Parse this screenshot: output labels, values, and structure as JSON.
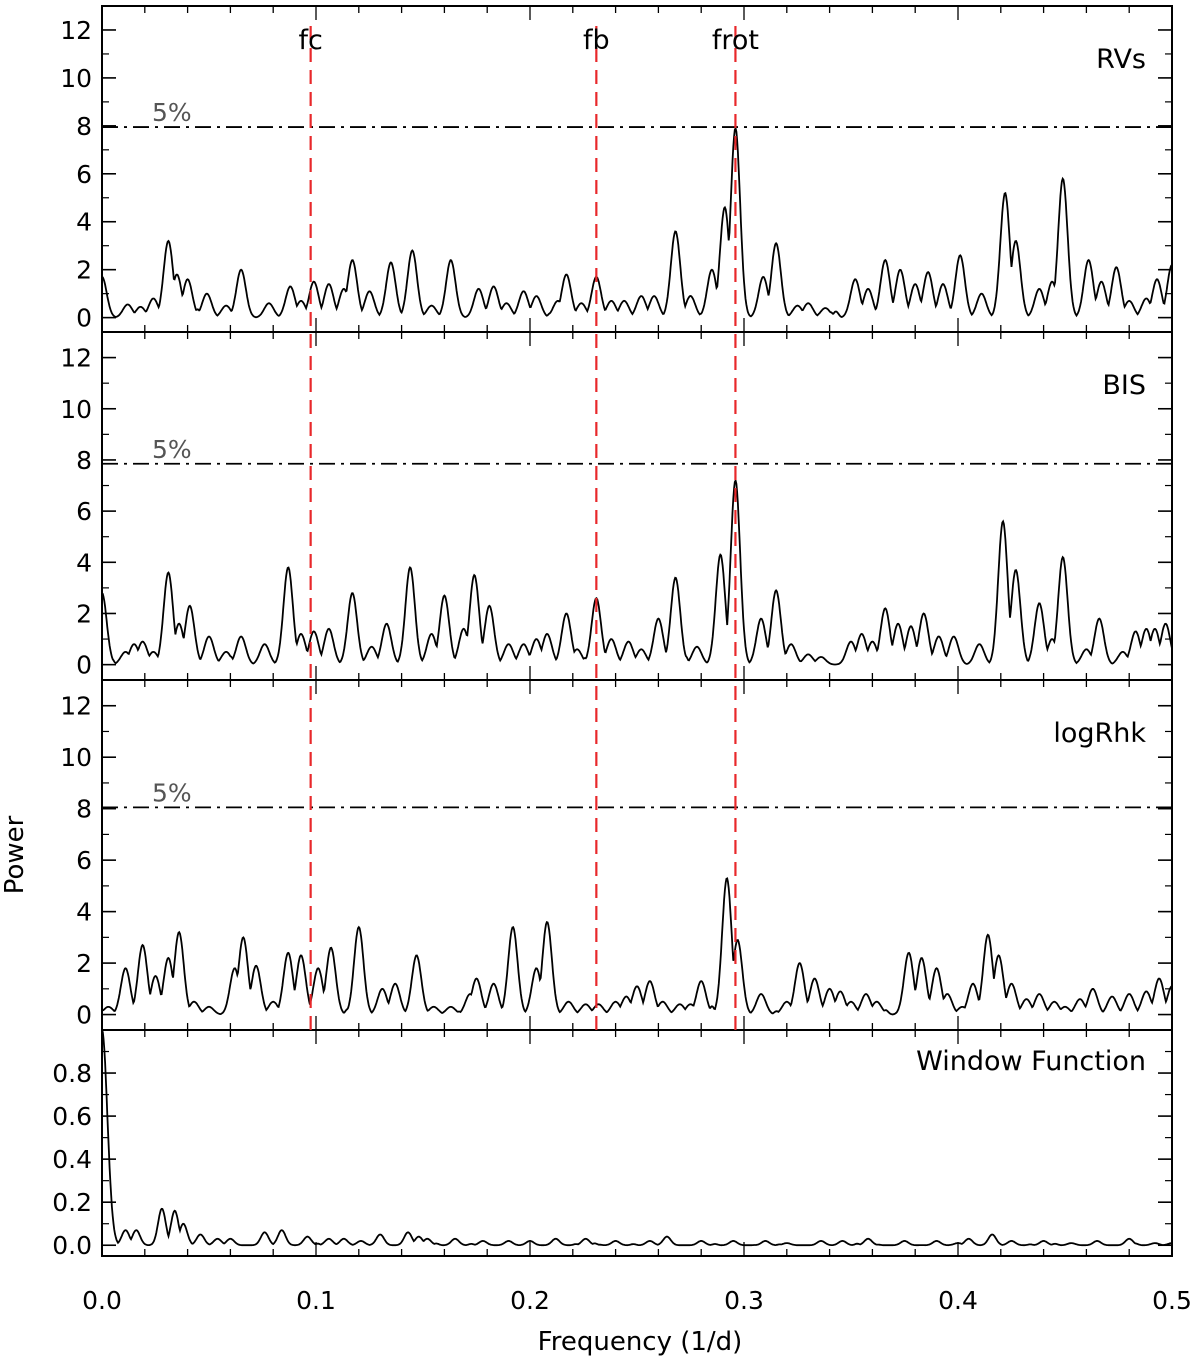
{
  "chart_data": {
    "type": "line",
    "xlabel": "Frequency (1/d)",
    "ylabel": "Power",
    "xlim": [
      0.0,
      0.5
    ],
    "x_ticks": [
      "0.0",
      "0.1",
      "0.2",
      "0.3",
      "0.4",
      "0.5"
    ],
    "vertical_markers": [
      {
        "label": "fc",
        "x": 0.0975,
        "color": "#e8282b"
      },
      {
        "label": "fb",
        "x": 0.231,
        "color": "#e8282b"
      },
      {
        "label": "frot",
        "x": 0.296,
        "color": "#e8282b"
      }
    ],
    "panels": [
      {
        "label": "RVs",
        "ylim": [
          -0.6,
          13
        ],
        "yticks": [
          "0",
          "2",
          "4",
          "6",
          "8",
          "10",
          "12"
        ],
        "significance": {
          "label": "5%",
          "value": 7.95
        },
        "peaks": [
          [
            0.0,
            1.7
          ],
          [
            0.012,
            0.55
          ],
          [
            0.018,
            0.45
          ],
          [
            0.024,
            0.8
          ],
          [
            0.031,
            3.2
          ],
          [
            0.035,
            1.8
          ],
          [
            0.04,
            1.6
          ],
          [
            0.049,
            1.0
          ],
          [
            0.058,
            0.5
          ],
          [
            0.065,
            2.0
          ],
          [
            0.078,
            0.6
          ],
          [
            0.088,
            1.3
          ],
          [
            0.093,
            0.7
          ],
          [
            0.099,
            1.5
          ],
          [
            0.106,
            1.4
          ],
          [
            0.113,
            1.2
          ],
          [
            0.117,
            2.4
          ],
          [
            0.125,
            1.1
          ],
          [
            0.135,
            2.3
          ],
          [
            0.145,
            2.8
          ],
          [
            0.154,
            0.5
          ],
          [
            0.163,
            2.4
          ],
          [
            0.176,
            1.2
          ],
          [
            0.183,
            1.3
          ],
          [
            0.189,
            0.6
          ],
          [
            0.197,
            1.1
          ],
          [
            0.203,
            0.9
          ],
          [
            0.213,
            0.7
          ],
          [
            0.217,
            1.8
          ],
          [
            0.224,
            0.6
          ],
          [
            0.231,
            1.7
          ],
          [
            0.238,
            0.7
          ],
          [
            0.244,
            0.7
          ],
          [
            0.252,
            0.9
          ],
          [
            0.258,
            0.9
          ],
          [
            0.268,
            3.6
          ],
          [
            0.275,
            0.9
          ],
          [
            0.285,
            2.0
          ],
          [
            0.291,
            4.6
          ],
          [
            0.296,
            7.9
          ],
          [
            0.309,
            1.7
          ],
          [
            0.315,
            3.1
          ],
          [
            0.325,
            0.5
          ],
          [
            0.33,
            0.6
          ],
          [
            0.338,
            0.4
          ],
          [
            0.352,
            1.6
          ],
          [
            0.358,
            1.2
          ],
          [
            0.366,
            2.4
          ],
          [
            0.373,
            2.0
          ],
          [
            0.38,
            1.4
          ],
          [
            0.386,
            1.9
          ],
          [
            0.393,
            1.4
          ],
          [
            0.401,
            2.6
          ],
          [
            0.411,
            1.0
          ],
          [
            0.422,
            5.2
          ],
          [
            0.427,
            3.2
          ],
          [
            0.438,
            1.2
          ],
          [
            0.444,
            1.5
          ],
          [
            0.449,
            5.8
          ],
          [
            0.461,
            2.4
          ],
          [
            0.467,
            1.5
          ],
          [
            0.474,
            2.1
          ],
          [
            0.48,
            0.7
          ],
          [
            0.488,
            0.8
          ],
          [
            0.493,
            1.6
          ],
          [
            0.5,
            2.2
          ]
        ]
      },
      {
        "label": "BIS",
        "ylim": [
          -0.6,
          13
        ],
        "yticks": [
          "0",
          "2",
          "4",
          "6",
          "8",
          "10",
          "12"
        ],
        "significance": {
          "label": "5%",
          "value": 7.85
        },
        "peaks": [
          [
            0.0,
            2.8
          ],
          [
            0.011,
            0.5
          ],
          [
            0.015,
            0.8
          ],
          [
            0.019,
            0.9
          ],
          [
            0.024,
            0.5
          ],
          [
            0.031,
            3.6
          ],
          [
            0.036,
            1.6
          ],
          [
            0.041,
            2.3
          ],
          [
            0.05,
            1.1
          ],
          [
            0.058,
            0.5
          ],
          [
            0.065,
            1.1
          ],
          [
            0.076,
            0.8
          ],
          [
            0.087,
            3.8
          ],
          [
            0.093,
            1.2
          ],
          [
            0.099,
            1.3
          ],
          [
            0.106,
            1.4
          ],
          [
            0.117,
            2.8
          ],
          [
            0.126,
            0.7
          ],
          [
            0.133,
            1.6
          ],
          [
            0.144,
            3.8
          ],
          [
            0.154,
            1.2
          ],
          [
            0.16,
            2.7
          ],
          [
            0.169,
            1.4
          ],
          [
            0.174,
            3.5
          ],
          [
            0.181,
            2.3
          ],
          [
            0.19,
            0.8
          ],
          [
            0.197,
            0.8
          ],
          [
            0.203,
            1.0
          ],
          [
            0.208,
            1.2
          ],
          [
            0.217,
            2.0
          ],
          [
            0.222,
            0.6
          ],
          [
            0.231,
            2.6
          ],
          [
            0.238,
            1.0
          ],
          [
            0.246,
            0.9
          ],
          [
            0.252,
            0.6
          ],
          [
            0.26,
            1.8
          ],
          [
            0.268,
            3.4
          ],
          [
            0.278,
            0.7
          ],
          [
            0.289,
            4.3
          ],
          [
            0.296,
            7.2
          ],
          [
            0.308,
            1.8
          ],
          [
            0.315,
            2.9
          ],
          [
            0.322,
            0.8
          ],
          [
            0.33,
            0.4
          ],
          [
            0.336,
            0.3
          ],
          [
            0.35,
            0.9
          ],
          [
            0.355,
            1.2
          ],
          [
            0.36,
            0.9
          ],
          [
            0.366,
            2.2
          ],
          [
            0.372,
            1.6
          ],
          [
            0.378,
            1.5
          ],
          [
            0.384,
            2.0
          ],
          [
            0.391,
            1.1
          ],
          [
            0.398,
            1.1
          ],
          [
            0.41,
            0.8
          ],
          [
            0.421,
            5.6
          ],
          [
            0.427,
            3.7
          ],
          [
            0.438,
            2.4
          ],
          [
            0.444,
            1.0
          ],
          [
            0.449,
            4.2
          ],
          [
            0.46,
            0.6
          ],
          [
            0.466,
            1.8
          ],
          [
            0.477,
            0.5
          ],
          [
            0.483,
            1.3
          ],
          [
            0.488,
            1.4
          ],
          [
            0.492,
            1.4
          ],
          [
            0.497,
            1.6
          ]
        ]
      },
      {
        "label": "logRhk",
        "ylim": [
          -0.6,
          13
        ],
        "yticks": [
          "0",
          "2",
          "4",
          "6",
          "8",
          "10",
          "12"
        ],
        "significance": {
          "label": "5%",
          "value": 8.05
        },
        "peaks": [
          [
            0.003,
            0.3
          ],
          [
            0.011,
            1.8
          ],
          [
            0.019,
            2.7
          ],
          [
            0.025,
            1.5
          ],
          [
            0.031,
            2.2
          ],
          [
            0.036,
            3.2
          ],
          [
            0.043,
            0.5
          ],
          [
            0.05,
            0.3
          ],
          [
            0.062,
            1.8
          ],
          [
            0.066,
            3.0
          ],
          [
            0.072,
            1.9
          ],
          [
            0.08,
            0.5
          ],
          [
            0.087,
            2.4
          ],
          [
            0.093,
            2.3
          ],
          [
            0.101,
            1.8
          ],
          [
            0.107,
            2.6
          ],
          [
            0.12,
            3.4
          ],
          [
            0.131,
            1.0
          ],
          [
            0.137,
            1.2
          ],
          [
            0.147,
            2.3
          ],
          [
            0.155,
            0.3
          ],
          [
            0.163,
            0.3
          ],
          [
            0.172,
            0.8
          ],
          [
            0.175,
            1.4
          ],
          [
            0.183,
            1.2
          ],
          [
            0.192,
            3.4
          ],
          [
            0.203,
            1.8
          ],
          [
            0.208,
            3.6
          ],
          [
            0.218,
            0.5
          ],
          [
            0.226,
            0.4
          ],
          [
            0.232,
            0.4
          ],
          [
            0.24,
            0.5
          ],
          [
            0.245,
            0.7
          ],
          [
            0.25,
            1.1
          ],
          [
            0.256,
            1.3
          ],
          [
            0.262,
            0.5
          ],
          [
            0.27,
            0.4
          ],
          [
            0.275,
            0.4
          ],
          [
            0.28,
            1.3
          ],
          [
            0.292,
            5.3
          ],
          [
            0.297,
            2.9
          ],
          [
            0.308,
            0.8
          ],
          [
            0.32,
            0.5
          ],
          [
            0.326,
            2.0
          ],
          [
            0.333,
            1.4
          ],
          [
            0.34,
            1.0
          ],
          [
            0.345,
            0.9
          ],
          [
            0.35,
            0.5
          ],
          [
            0.357,
            0.8
          ],
          [
            0.362,
            0.5
          ],
          [
            0.377,
            2.4
          ],
          [
            0.383,
            2.2
          ],
          [
            0.39,
            1.8
          ],
          [
            0.395,
            0.8
          ],
          [
            0.402,
            0.3
          ],
          [
            0.407,
            1.2
          ],
          [
            0.414,
            3.1
          ],
          [
            0.419,
            2.3
          ],
          [
            0.425,
            1.2
          ],
          [
            0.432,
            0.6
          ],
          [
            0.438,
            0.8
          ],
          [
            0.445,
            0.5
          ],
          [
            0.45,
            0.3
          ],
          [
            0.457,
            0.6
          ],
          [
            0.463,
            1.0
          ],
          [
            0.472,
            0.7
          ],
          [
            0.48,
            0.8
          ],
          [
            0.488,
            0.9
          ],
          [
            0.494,
            1.4
          ],
          [
            0.5,
            1.1
          ]
        ]
      },
      {
        "label": "Window Function",
        "ylim": [
          -0.05,
          1.0
        ],
        "yticks": [
          "0.0",
          "0.2",
          "0.4",
          "0.6",
          "0.8"
        ],
        "significance": null,
        "peaks": [
          [
            0.0,
            1.0
          ],
          [
            0.011,
            0.07
          ],
          [
            0.016,
            0.07
          ],
          [
            0.028,
            0.17
          ],
          [
            0.034,
            0.16
          ],
          [
            0.038,
            0.1
          ],
          [
            0.046,
            0.05
          ],
          [
            0.054,
            0.03
          ],
          [
            0.06,
            0.03
          ],
          [
            0.076,
            0.06
          ],
          [
            0.084,
            0.07
          ],
          [
            0.096,
            0.04
          ],
          [
            0.106,
            0.03
          ],
          [
            0.113,
            0.03
          ],
          [
            0.121,
            0.02
          ],
          [
            0.13,
            0.05
          ],
          [
            0.143,
            0.06
          ],
          [
            0.148,
            0.04
          ],
          [
            0.152,
            0.03
          ],
          [
            0.165,
            0.03
          ],
          [
            0.178,
            0.02
          ],
          [
            0.19,
            0.02
          ],
          [
            0.2,
            0.02
          ],
          [
            0.212,
            0.03
          ],
          [
            0.226,
            0.03
          ],
          [
            0.24,
            0.02
          ],
          [
            0.256,
            0.02
          ],
          [
            0.264,
            0.04
          ],
          [
            0.28,
            0.02
          ],
          [
            0.295,
            0.02
          ],
          [
            0.31,
            0.02
          ],
          [
            0.32,
            0.01
          ],
          [
            0.336,
            0.02
          ],
          [
            0.346,
            0.02
          ],
          [
            0.358,
            0.03
          ],
          [
            0.375,
            0.02
          ],
          [
            0.39,
            0.02
          ],
          [
            0.4,
            0.01
          ],
          [
            0.405,
            0.03
          ],
          [
            0.416,
            0.05
          ],
          [
            0.425,
            0.02
          ],
          [
            0.44,
            0.02
          ],
          [
            0.453,
            0.01
          ],
          [
            0.465,
            0.02
          ],
          [
            0.48,
            0.03
          ],
          [
            0.492,
            0.01
          ],
          [
            0.5,
            0.01
          ]
        ]
      }
    ]
  }
}
